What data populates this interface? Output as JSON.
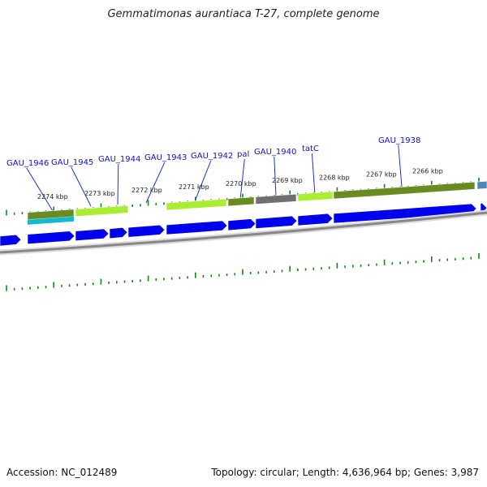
{
  "title": "Gemmatimonas aurantiaca T-27, complete genome",
  "footer": {
    "accession": "Accession: NC_012489",
    "summary": "Topology: circular; Length: 4,636,964 bp; Genes: 3,987"
  },
  "colors": {
    "cds": "#0000ee",
    "tick": "#118811",
    "label": "#1111cc",
    "leader": "#2233bb",
    "backbone": "#888888",
    "olive": "#6a8a22",
    "lime": "#aaee33",
    "gray": "#707070",
    "cyan": "#11bbcc",
    "steelblue": "#4a88bb"
  },
  "scale_labels": [
    "2274 kbp",
    "2273 kbp",
    "2272 kbp",
    "2271 kbp",
    "2270 kbp",
    "2269 kbp",
    "2268 kbp",
    "2267 kbp",
    "2266 kbp"
  ],
  "gene_labels": [
    "GAU_1946",
    "GAU_1945",
    "GAU_1944",
    "GAU_1943",
    "GAU_1942",
    "pal",
    "GAU_1940",
    "tatC",
    "GAU_1938"
  ]
}
